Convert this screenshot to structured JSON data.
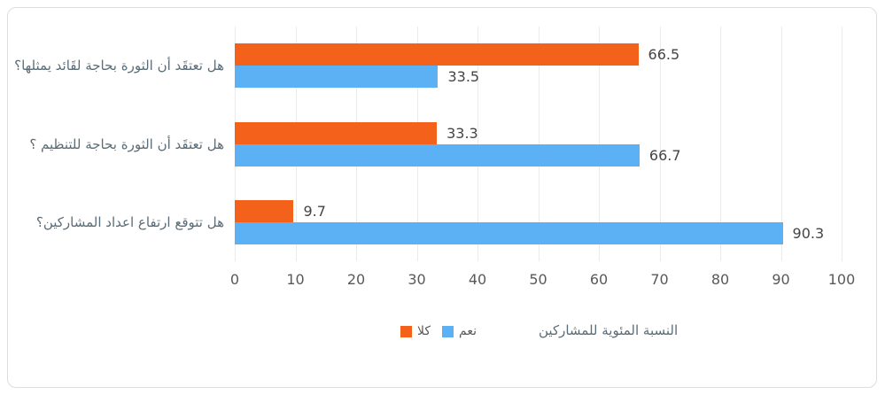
{
  "chart_data": {
    "type": "bar",
    "orientation": "horizontal",
    "categories": [
      "هل تعتقَد أن الثورة بحاجة لقَائد يمثلها؟",
      "هل تعتقَد أن الثورة بحاجة للتنظيم ؟",
      "هل تتوقع ارتفاع اعداد المشاركين؟"
    ],
    "series": [
      {
        "name": "كلا",
        "color": "#F3611B",
        "values": [
          66.5,
          33.3,
          9.7
        ]
      },
      {
        "name": "نعم",
        "color": "#5CB1F4",
        "values": [
          33.5,
          66.7,
          90.3
        ]
      }
    ],
    "xlabel": "النسبة المئوية للمشاركين",
    "xlim": [
      0,
      100
    ],
    "xticks": [
      0,
      10,
      20,
      30,
      40,
      50,
      60,
      70,
      80,
      90,
      100
    ],
    "grid": true,
    "legend_position": "bottom"
  },
  "colors": {
    "no_series": "#F3611B",
    "yes_series": "#5CB1F4",
    "gridline": "#E9ECEB",
    "frame_border": "#DBDDDE",
    "tick_text": "#595959",
    "category_text": "#5A6C76"
  }
}
